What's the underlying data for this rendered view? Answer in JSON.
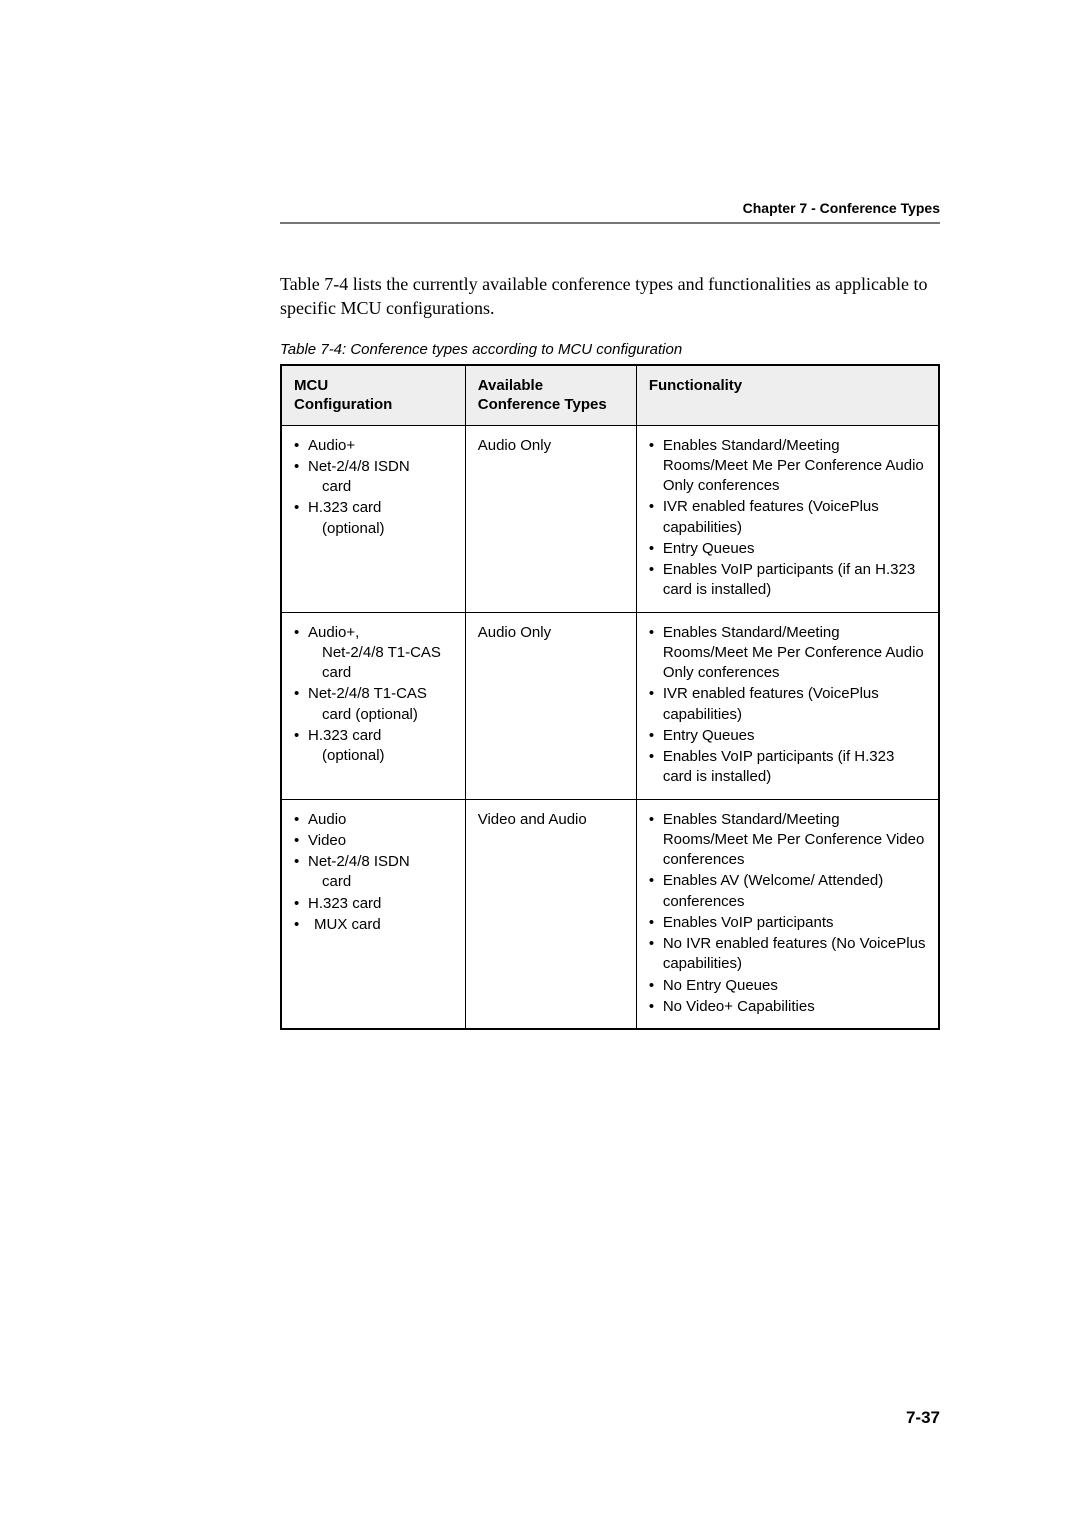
{
  "page": {
    "chapter_header": "Chapter 7 - Conference Types",
    "intro_paragraph": "Table 7-4  lists the currently available conference types and functionalities as applicable to specific MCU configurations.",
    "table_caption": "Table 7-4: Conference types according to MCU configuration",
    "page_number": "7-37"
  },
  "table": {
    "headers": {
      "col1_line1": "MCU",
      "col1_line2": "Configuration",
      "col2_line1": "Available",
      "col2_line2": "Conference Types",
      "col3": "Functionality"
    },
    "rows": [
      {
        "config": [
          {
            "text": "Audio+",
            "sub": ""
          },
          {
            "text": "Net-2/4/8 ISDN",
            "sub": "card"
          },
          {
            "text": "H.323 card",
            "sub": "(optional)"
          }
        ],
        "types": "Audio Only",
        "functionality": [
          {
            "text": "Enables Standard/Meeting Rooms/Meet Me Per Conference Audio Only conferences"
          },
          {
            "text": "IVR enabled features (VoicePlus capabilities)"
          },
          {
            "text": "Entry Queues"
          },
          {
            "text": "Enables VoIP participants (if an H.323 card is installed)"
          }
        ]
      },
      {
        "config": [
          {
            "text": "Audio+,",
            "sub": "Net-2/4/8 T1-CAS",
            "sub2": "card"
          },
          {
            "text": "Net-2/4/8 T1-CAS",
            "sub": "card (optional)"
          },
          {
            "text": "H.323 card",
            "sub": "(optional)"
          }
        ],
        "types": "Audio Only",
        "functionality": [
          {
            "text": "Enables Standard/Meeting Rooms/Meet Me Per Conference Audio Only conferences"
          },
          {
            "text": "IVR enabled features (VoicePlus capabilities)"
          },
          {
            "text": "Entry Queues"
          },
          {
            "text": "Enables VoIP participants (if H.323 card is installed)"
          }
        ]
      },
      {
        "config": [
          {
            "text": "Audio",
            "sub": ""
          },
          {
            "text": "Video",
            "sub": ""
          },
          {
            "text": "Net-2/4/8 ISDN",
            "sub": "card"
          },
          {
            "text": "H.323 card",
            "sub": ""
          },
          {
            "text": "MUX card",
            "sub": "",
            "spaced": true
          }
        ],
        "types": "Video and Audio",
        "functionality": [
          {
            "text": "Enables Standard/Meeting Rooms/Meet Me Per Conference Video conferences"
          },
          {
            "text": "Enables AV (Welcome/ Attended) conferences"
          },
          {
            "text": "Enables VoIP participants"
          },
          {
            "text": "No IVR enabled features (No VoicePlus capabilities)"
          },
          {
            "text": "No Entry Queues"
          },
          {
            "text": "No Video+ Capabilities"
          }
        ]
      }
    ]
  }
}
